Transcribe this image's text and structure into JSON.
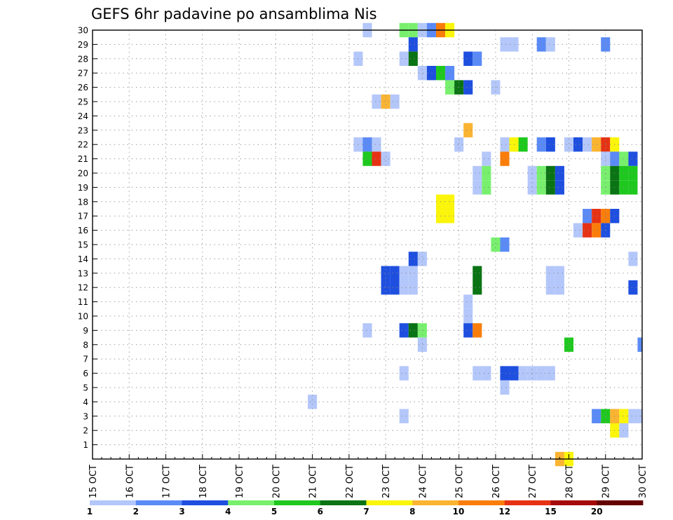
{
  "chart_data": {
    "type": "heatmap",
    "title": "GEFS 6hr padavine po ansamblima Nis",
    "xlabel": "",
    "ylabel": "",
    "x_tick_labels": [
      "15 OCT",
      "16 OCT",
      "17 OCT",
      "18 OCT",
      "19 OCT",
      "20 OCT",
      "21 OCT",
      "22 OCT",
      "23 OCT",
      "24 OCT",
      "25 OCT",
      "26 OCT",
      "27 OCT",
      "28 OCT",
      "29 OCT",
      "30 OCT"
    ],
    "y_tick_labels": [
      "1",
      "2",
      "3",
      "4",
      "5",
      "6",
      "7",
      "8",
      "9",
      "10",
      "11",
      "12",
      "13",
      "14",
      "15",
      "16",
      "17",
      "18",
      "19",
      "20",
      "21",
      "22",
      "23",
      "24",
      "25",
      "26",
      "27",
      "28",
      "29",
      "30"
    ],
    "xlim": [
      0,
      60
    ],
    "ylim": [
      0,
      30
    ],
    "x_unit": "6-hour steps from 15 OCT 00Z",
    "y_unit": "ensemble member",
    "grid": true,
    "levels": [
      1,
      2,
      3,
      4,
      5,
      6,
      7,
      8,
      10,
      12,
      15,
      20
    ],
    "level_labels": [
      "1",
      "2",
      "3",
      "4",
      "5",
      "6",
      "7",
      "8",
      "10",
      "12",
      "15",
      "20"
    ],
    "colors": [
      "#b4c7fa",
      "#5a8af5",
      "#1e4fdf",
      "#78f06e",
      "#1fc81f",
      "#0a7314",
      "#faf50a",
      "#fab432",
      "#fa7d0a",
      "#e63214",
      "#a50a0a",
      "#640000"
    ],
    "cells": [
      [
        30,
        30,
        0
      ],
      [
        30,
        34,
        3
      ],
      [
        30,
        35,
        3
      ],
      [
        30,
        36,
        0
      ],
      [
        30,
        37,
        1
      ],
      [
        30,
        38,
        8
      ],
      [
        30,
        39,
        6
      ],
      [
        29,
        35,
        2
      ],
      [
        29,
        45,
        0
      ],
      [
        29,
        46,
        0
      ],
      [
        29,
        49,
        1
      ],
      [
        29,
        50,
        0
      ],
      [
        29,
        56,
        1
      ],
      [
        28,
        29,
        0
      ],
      [
        28,
        34,
        0
      ],
      [
        28,
        35,
        5
      ],
      [
        28,
        41,
        2
      ],
      [
        28,
        42,
        1
      ],
      [
        27,
        36,
        0
      ],
      [
        27,
        37,
        2
      ],
      [
        27,
        38,
        4
      ],
      [
        27,
        39,
        1
      ],
      [
        26,
        39,
        3
      ],
      [
        26,
        40,
        5
      ],
      [
        26,
        41,
        2
      ],
      [
        26,
        44,
        0
      ],
      [
        25,
        31,
        0
      ],
      [
        25,
        32,
        7
      ],
      [
        25,
        33,
        0
      ],
      [
        23,
        41,
        7
      ],
      [
        22,
        29,
        0
      ],
      [
        22,
        30,
        1
      ],
      [
        22,
        31,
        0
      ],
      [
        22,
        40,
        0
      ],
      [
        22,
        45,
        0
      ],
      [
        22,
        46,
        6
      ],
      [
        22,
        47,
        4
      ],
      [
        22,
        49,
        1
      ],
      [
        22,
        50,
        2
      ],
      [
        22,
        52,
        0
      ],
      [
        22,
        53,
        2
      ],
      [
        22,
        54,
        0
      ],
      [
        22,
        55,
        7
      ],
      [
        22,
        56,
        9
      ],
      [
        22,
        57,
        6
      ],
      [
        21,
        30,
        4
      ],
      [
        21,
        31,
        9
      ],
      [
        21,
        32,
        0
      ],
      [
        21,
        43,
        0
      ],
      [
        21,
        45,
        8
      ],
      [
        21,
        56,
        0
      ],
      [
        21,
        57,
        1
      ],
      [
        21,
        58,
        3
      ],
      [
        21,
        59,
        2
      ],
      [
        20,
        42,
        0
      ],
      [
        20,
        43,
        3
      ],
      [
        20,
        48,
        0
      ],
      [
        20,
        49,
        3
      ],
      [
        20,
        50,
        5
      ],
      [
        20,
        51,
        2
      ],
      [
        20,
        56,
        3
      ],
      [
        20,
        57,
        5
      ],
      [
        20,
        58,
        4
      ],
      [
        20,
        59,
        4
      ],
      [
        19,
        42,
        0
      ],
      [
        19,
        43,
        3
      ],
      [
        19,
        48,
        0
      ],
      [
        19,
        49,
        3
      ],
      [
        19,
        50,
        5
      ],
      [
        19,
        51,
        2
      ],
      [
        19,
        56,
        3
      ],
      [
        19,
        57,
        5
      ],
      [
        19,
        58,
        4
      ],
      [
        19,
        59,
        4
      ],
      [
        18,
        38,
        6
      ],
      [
        18,
        39,
        6
      ],
      [
        17,
        38,
        6
      ],
      [
        17,
        39,
        6
      ],
      [
        17,
        54,
        1
      ],
      [
        17,
        55,
        9
      ],
      [
        17,
        56,
        8
      ],
      [
        17,
        57,
        2
      ],
      [
        16,
        53,
        0
      ],
      [
        16,
        54,
        9
      ],
      [
        16,
        55,
        8
      ],
      [
        16,
        56,
        2
      ],
      [
        15,
        44,
        3
      ],
      [
        15,
        45,
        1
      ],
      [
        14,
        35,
        2
      ],
      [
        14,
        36,
        0
      ],
      [
        14,
        59,
        0
      ],
      [
        13,
        32,
        2
      ],
      [
        13,
        33,
        2
      ],
      [
        13,
        34,
        0
      ],
      [
        13,
        35,
        0
      ],
      [
        13,
        42,
        5
      ],
      [
        13,
        50,
        0
      ],
      [
        13,
        51,
        0
      ],
      [
        12,
        32,
        2
      ],
      [
        12,
        33,
        2
      ],
      [
        12,
        34,
        0
      ],
      [
        12,
        35,
        0
      ],
      [
        12,
        42,
        5
      ],
      [
        12,
        50,
        0
      ],
      [
        12,
        51,
        0
      ],
      [
        12,
        59,
        2
      ],
      [
        11,
        41,
        0
      ],
      [
        10,
        41,
        0
      ],
      [
        9,
        30,
        0
      ],
      [
        9,
        34,
        2
      ],
      [
        9,
        35,
        5
      ],
      [
        9,
        36,
        3
      ],
      [
        9,
        41,
        2
      ],
      [
        9,
        42,
        8
      ],
      [
        8,
        36,
        0
      ],
      [
        8,
        52,
        4
      ],
      [
        8,
        60,
        1
      ],
      [
        6,
        34,
        0
      ],
      [
        6,
        42,
        0
      ],
      [
        6,
        43,
        0
      ],
      [
        6,
        45,
        2
      ],
      [
        6,
        46,
        2
      ],
      [
        6,
        47,
        0
      ],
      [
        6,
        48,
        0
      ],
      [
        6,
        49,
        0
      ],
      [
        6,
        50,
        0
      ],
      [
        5,
        45,
        0
      ],
      [
        4,
        24,
        0
      ],
      [
        3,
        34,
        0
      ],
      [
        3,
        55,
        1
      ],
      [
        3,
        56,
        4
      ],
      [
        3,
        57,
        7
      ],
      [
        3,
        58,
        6
      ],
      [
        3,
        59,
        0
      ],
      [
        3,
        60,
        0
      ],
      [
        2,
        57,
        6
      ],
      [
        2,
        58,
        0
      ],
      [
        0,
        51,
        7
      ],
      [
        0,
        52,
        6
      ]
    ]
  }
}
